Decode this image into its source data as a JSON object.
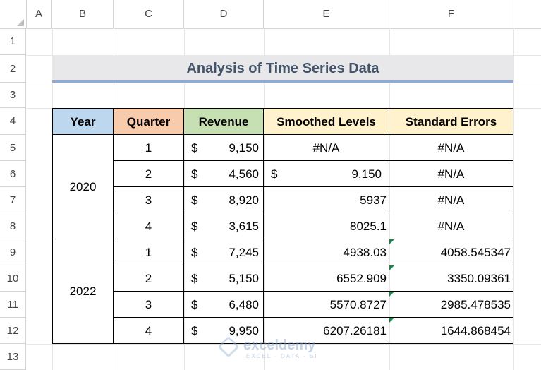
{
  "columns": [
    "A",
    "B",
    "C",
    "D",
    "E",
    "F"
  ],
  "rows": [
    "1",
    "2",
    "3",
    "4",
    "5",
    "6",
    "7",
    "8",
    "9",
    "10",
    "11",
    "12",
    "13"
  ],
  "title": "Analysis of Time Series Data",
  "headers": {
    "year": "Year",
    "quarter": "Quarter",
    "revenue": "Revenue",
    "smoothed": "Smoothed Levels",
    "stderr": "Standard Errors"
  },
  "currency_symbol": "$",
  "years": [
    "2020",
    "2022"
  ],
  "data_rows": [
    {
      "quarter": "1",
      "revenue": "9,150",
      "smoothed": "#N/A",
      "stderr": "#N/A"
    },
    {
      "quarter": "2",
      "revenue": "4,560",
      "smoothed": "9,150",
      "stderr": "#N/A"
    },
    {
      "quarter": "3",
      "revenue": "8,920",
      "smoothed": "5937",
      "stderr": "#N/A"
    },
    {
      "quarter": "4",
      "revenue": "3,615",
      "smoothed": "8025.1",
      "stderr": "#N/A"
    },
    {
      "quarter": "1",
      "revenue": "7,245",
      "smoothed": "4938.03",
      "stderr": "4058.545347"
    },
    {
      "quarter": "2",
      "revenue": "5,150",
      "smoothed": "6552.909",
      "stderr": "3350.09361"
    },
    {
      "quarter": "3",
      "revenue": "6,480",
      "smoothed": "5570.8727",
      "stderr": "2985.478535"
    },
    {
      "quarter": "4",
      "revenue": "9,950",
      "smoothed": "6207.26181",
      "stderr": "1644.868454"
    }
  ],
  "colors": {
    "year_header": "#bdd7ee",
    "quarter_header": "#f8cbad",
    "revenue_header": "#c6e0b4",
    "smoothed_header": "#fff2cc",
    "stderr_header": "#fff2cc",
    "title_fill": "#e8e8ea",
    "title_text": "#44546a",
    "error_flag": "#1e8449"
  },
  "watermark": {
    "name": "exceldemy",
    "tagline": "EXCEL · DATA · BI"
  }
}
